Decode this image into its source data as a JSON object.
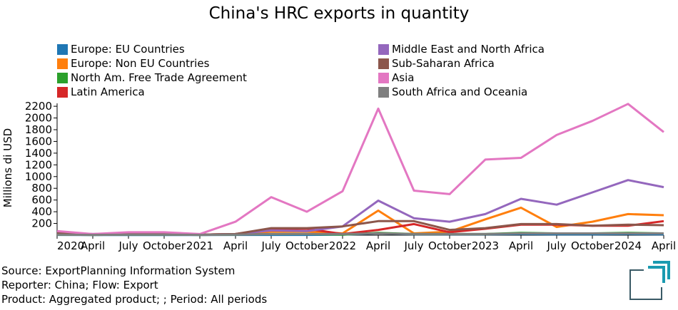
{
  "chart_data": {
    "type": "line",
    "title": "China's HRC exports in quantity",
    "ylabel": "Millions di USD",
    "xlabel": "",
    "ylim": [
      0,
      2250
    ],
    "yticks": [
      200,
      400,
      600,
      800,
      1000,
      1200,
      1400,
      1600,
      1800,
      2000,
      2200
    ],
    "x": [
      "2020-01",
      "2020-04",
      "2020-07",
      "2020-10",
      "2021-01",
      "2021-04",
      "2021-07",
      "2021-10",
      "2022-01",
      "2022-04",
      "2022-07",
      "2022-10",
      "2023-01",
      "2023-04",
      "2023-07",
      "2023-10",
      "2024-01",
      "2024-04"
    ],
    "xtick_labels": [
      "2020",
      "April",
      "July",
      "October",
      "2021",
      "April",
      "July",
      "October",
      "2022",
      "April",
      "July",
      "October",
      "2023",
      "April",
      "July",
      "October",
      "2024",
      "April"
    ],
    "legend_position": "top",
    "series": [
      {
        "name": "Europe: EU Countries",
        "color": "#1f77b4",
        "values": [
          5,
          3,
          3,
          3,
          3,
          5,
          5,
          5,
          10,
          30,
          15,
          15,
          15,
          20,
          15,
          15,
          20,
          15
        ]
      },
      {
        "name": "Europe: Non EU Countries",
        "color": "#ff7f0e",
        "values": [
          30,
          10,
          20,
          20,
          10,
          20,
          60,
          60,
          30,
          420,
          30,
          60,
          270,
          470,
          140,
          230,
          360,
          340
        ]
      },
      {
        "name": "North Am. Free Trade Agreement",
        "color": "#2ca02c",
        "values": [
          10,
          5,
          10,
          10,
          5,
          10,
          20,
          20,
          10,
          40,
          20,
          20,
          20,
          40,
          30,
          30,
          40,
          30
        ]
      },
      {
        "name": "Latin America",
        "color": "#d62728",
        "values": [
          20,
          10,
          20,
          20,
          10,
          20,
          100,
          110,
          20,
          90,
          190,
          50,
          110,
          180,
          180,
          160,
          160,
          240
        ]
      },
      {
        "name": "Middle East and North Africa",
        "color": "#9467bd",
        "values": [
          40,
          20,
          30,
          30,
          10,
          20,
          80,
          70,
          150,
          590,
          290,
          230,
          360,
          620,
          520,
          730,
          940,
          820
        ]
      },
      {
        "name": "Sub-Saharan Africa",
        "color": "#8c564b",
        "values": [
          30,
          10,
          20,
          20,
          10,
          20,
          120,
          120,
          150,
          240,
          240,
          90,
          120,
          190,
          190,
          160,
          180,
          170
        ]
      },
      {
        "name": "Asia",
        "color": "#e377c2",
        "values": [
          70,
          20,
          50,
          50,
          20,
          230,
          650,
          400,
          750,
          2160,
          760,
          700,
          1290,
          1320,
          1710,
          1950,
          2240,
          1760
        ]
      },
      {
        "name": "South Africa and Oceania",
        "color": "#7f7f7f",
        "values": [
          10,
          5,
          10,
          10,
          5,
          10,
          20,
          20,
          20,
          30,
          20,
          20,
          20,
          30,
          30,
          30,
          30,
          30
        ]
      }
    ]
  },
  "footer": {
    "source": "Source: ExportPlanning Information System",
    "reporter": "Reporter: China; Flow: Export",
    "product": "Product: Aggregated product; ; Period: All periods"
  }
}
